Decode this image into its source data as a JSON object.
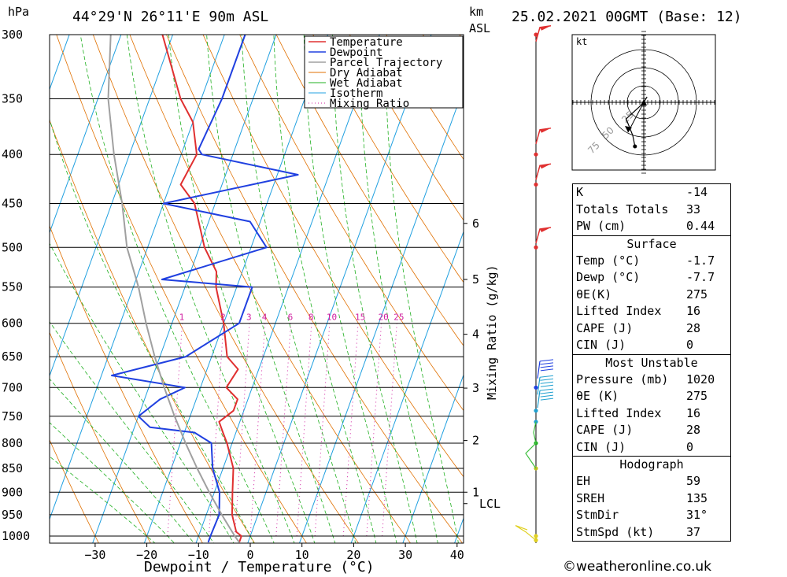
{
  "header": {
    "pressure_unit": "hPa",
    "location": "44°29'N 26°11'E 90m ASL",
    "height_unit_1": "km",
    "height_unit_2": "ASL",
    "datetime": "25.02.2021 00GMT (Base: 12)"
  },
  "chart_data": {
    "type": "line",
    "title": "44°29'N 26°11'E 90m ASL",
    "xlabel": "Dewpoint / Temperature (°C)",
    "ylabel": "hPa",
    "xlim": [
      -40,
      40
    ],
    "ylim": [
      1015,
      300
    ],
    "x_ticks": [
      -30,
      -20,
      -10,
      0,
      10,
      20,
      30,
      40
    ],
    "y_ticks": [
      300,
      350,
      400,
      450,
      500,
      550,
      600,
      650,
      700,
      750,
      800,
      850,
      900,
      950,
      1000
    ],
    "grid": true,
    "legend_position": "top-right",
    "legend": [
      {
        "name": "Temperature",
        "color": "#e03030",
        "style": "solid"
      },
      {
        "name": "Dewpoint",
        "color": "#2040e0",
        "style": "solid"
      },
      {
        "name": "Parcel Trajectory",
        "color": "#a0a0a0",
        "style": "solid"
      },
      {
        "name": "Dry Adiabat",
        "color": "#e07000",
        "style": "solid"
      },
      {
        "name": "Wet Adiabat",
        "color": "#20b020",
        "style": "solid"
      },
      {
        "name": "Isotherm",
        "color": "#20a0e0",
        "style": "solid"
      },
      {
        "name": "Mixing Ratio",
        "color": "#d020a0",
        "style": "dotted"
      }
    ],
    "series": [
      {
        "name": "Temperature",
        "points": [
          [
            1015,
            -1.7
          ],
          [
            1000,
            -1.7
          ],
          [
            990,
            -3
          ],
          [
            950,
            -5
          ],
          [
            900,
            -6.5
          ],
          [
            850,
            -8
          ],
          [
            800,
            -11
          ],
          [
            780,
            -12.5
          ],
          [
            760,
            -14
          ],
          [
            740,
            -12
          ],
          [
            720,
            -12
          ],
          [
            700,
            -15
          ],
          [
            670,
            -14
          ],
          [
            650,
            -17
          ],
          [
            600,
            -20
          ],
          [
            550,
            -24
          ],
          [
            530,
            -25
          ],
          [
            500,
            -29
          ],
          [
            450,
            -34
          ],
          [
            430,
            -38
          ],
          [
            400,
            -37
          ],
          [
            370,
            -40
          ],
          [
            350,
            -44
          ],
          [
            300,
            -52
          ]
        ]
      },
      {
        "name": "Dewpoint",
        "points": [
          [
            1015,
            -7.7
          ],
          [
            1000,
            -7.7
          ],
          [
            950,
            -7.5
          ],
          [
            900,
            -9
          ],
          [
            850,
            -12
          ],
          [
            800,
            -14
          ],
          [
            780,
            -18
          ],
          [
            770,
            -27
          ],
          [
            750,
            -30
          ],
          [
            720,
            -27
          ],
          [
            700,
            -23
          ],
          [
            680,
            -38
          ],
          [
            650,
            -25
          ],
          [
            600,
            -17
          ],
          [
            550,
            -17
          ],
          [
            540,
            -35
          ],
          [
            500,
            -17
          ],
          [
            470,
            -22
          ],
          [
            450,
            -40
          ],
          [
            420,
            -16
          ],
          [
            400,
            -36
          ],
          [
            395,
            -37
          ],
          [
            350,
            -36
          ],
          [
            300,
            -36
          ]
        ]
      },
      {
        "name": "Parcel Trajectory",
        "points": [
          [
            1015,
            -1.7
          ],
          [
            1000,
            -3
          ],
          [
            950,
            -7
          ],
          [
            900,
            -11
          ],
          [
            850,
            -15
          ],
          [
            800,
            -19
          ],
          [
            750,
            -23
          ],
          [
            700,
            -27
          ],
          [
            650,
            -31
          ],
          [
            600,
            -35
          ],
          [
            550,
            -39
          ],
          [
            500,
            -44
          ],
          [
            450,
            -48
          ],
          [
            400,
            -53
          ],
          [
            350,
            -58
          ],
          [
            300,
            -62
          ]
        ]
      }
    ],
    "km_scale": [
      {
        "label": "1",
        "p": 900
      },
      {
        "label": "LCL",
        "p": 925
      },
      {
        "label": "2",
        "p": 795
      },
      {
        "label": "3",
        "p": 701
      },
      {
        "label": "4",
        "p": 616
      },
      {
        "label": "5",
        "p": 540
      },
      {
        "label": "6",
        "p": 472
      }
    ],
    "mixing_ratio_labels": [
      "1",
      "2",
      "3",
      "4",
      "6",
      "8",
      "10",
      "15",
      "20",
      "25"
    ],
    "mixing_ratio_axis_label": "Mixing Ratio (g/kg)",
    "hodograph": {
      "unit_label": "kt",
      "ring_labels": [
        "25",
        "50",
        "75"
      ],
      "points_kt": [
        [
          -8,
          -40
        ],
        [
          -10,
          -30
        ],
        [
          -16,
          -15
        ],
        [
          -5,
          -5
        ],
        [
          0,
          0
        ],
        [
          3,
          5
        ]
      ]
    }
  },
  "stats": {
    "k_label": "K",
    "k_value": "-14",
    "tt_label": "Totals Totals",
    "tt_value": "33",
    "pw_label": "PW (cm)",
    "pw_value": "0.44",
    "surface_title": "Surface",
    "s_temp_label": "Temp (°C)",
    "s_temp_value": "-1.7",
    "s_dewp_label": "Dewp (°C)",
    "s_dewp_value": "-7.7",
    "s_theta_label": "θE(K)",
    "s_theta_value": "275",
    "s_li_label": "Lifted Index",
    "s_li_value": "16",
    "s_cape_label": "CAPE (J)",
    "s_cape_value": "28",
    "s_cin_label": "CIN (J)",
    "s_cin_value": "0",
    "mu_title": "Most Unstable",
    "mu_pres_label": "Pressure (mb)",
    "mu_pres_value": "1020",
    "mu_theta_label": "θE (K)",
    "mu_theta_value": "275",
    "mu_li_label": "Lifted Index",
    "mu_li_value": "16",
    "mu_cape_label": "CAPE (J)",
    "mu_cape_value": "28",
    "mu_cin_label": "CIN (J)",
    "mu_cin_value": "0",
    "hodo_title": "Hodograph",
    "eh_label": "EH",
    "eh_value": "59",
    "sreh_label": "SREH",
    "sreh_value": "135",
    "stmdir_label": "StmDir",
    "stmdir_value": "31°",
    "stmspd_label": "StmSpd (kt)",
    "stmspd_value": "37"
  },
  "footer": {
    "credit": "©weatheronline.co.uk"
  }
}
